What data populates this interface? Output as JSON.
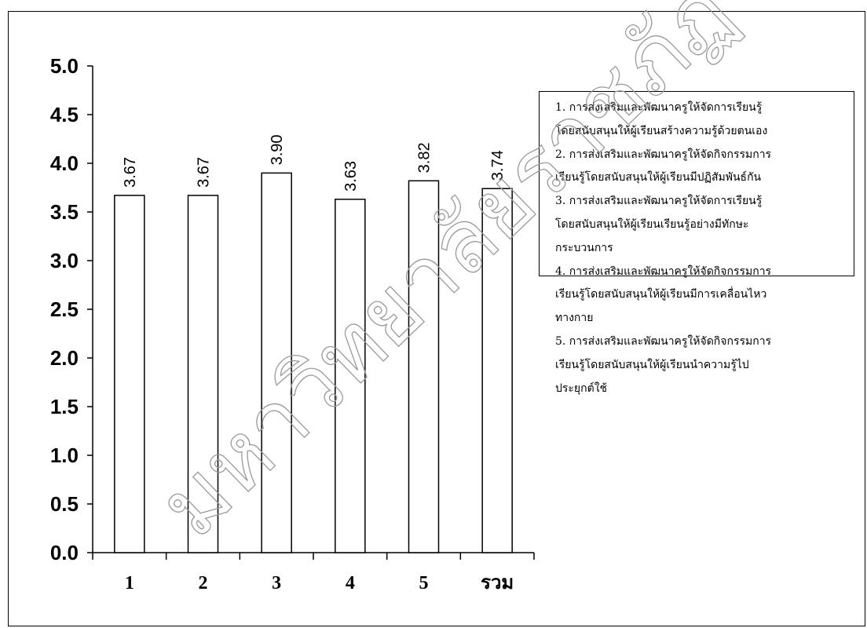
{
  "chart_data": {
    "type": "bar",
    "categories": [
      "1",
      "2",
      "3",
      "4",
      "5",
      "รวม"
    ],
    "values": [
      3.67,
      3.67,
      3.9,
      3.63,
      3.82,
      3.74
    ],
    "data_labels": [
      "3.67",
      "3.67",
      "3.90",
      "3.63",
      "3.82",
      "3.74"
    ],
    "y_ticks": [
      "0.0",
      "0.5",
      "1.0",
      "1.5",
      "2.0",
      "2.5",
      "3.0",
      "3.5",
      "4.0",
      "4.5",
      "5.0"
    ],
    "ylim": [
      0,
      5
    ],
    "title": "",
    "xlabel": "",
    "ylabel": "",
    "grid": false,
    "legend_position": "right",
    "bar_fill": "#ffffff",
    "bar_stroke": "#000000"
  },
  "legend": {
    "lines": [
      "1. การส่งเสริมและพัฒนาครูให้จัดการเรียนรู้",
      "โดยสนับสนุนให้ผู้เรียนสร้างความรู้ด้วยตนเอง",
      "2. การส่งเสริมและพัฒนาครูให้จัดกิจกรรมการ",
      "เรียนรู้โดยสนับสนุนให้ผู้เรียนมีปฏิสัมพันธ์กัน",
      "3. การส่งเสริมและพัฒนาครูให้จัดการเรียนรู้",
      "โดยสนับสนุนให้ผู้เรียนเรียนรู้อย่างมีทักษะ",
      "กระบวนการ",
      "4. การส่งเสริมและพัฒนาครูให้จัดกิจกรรมการ",
      "เรียนรู้โดยสนับสนุนให้ผู้เรียนมีการเคลื่อนไหว",
      "ทางกาย",
      "5. การส่งเสริมและพัฒนาครูให้จัดกิจกรรมการ",
      "เรียนรู้โดยสนับสนุนให้ผู้เรียนนำความรู้ไป",
      "ประยุกต์ใช้"
    ]
  },
  "watermark": {
    "text": "มหาวิทยาลัยราชภัฏ"
  }
}
